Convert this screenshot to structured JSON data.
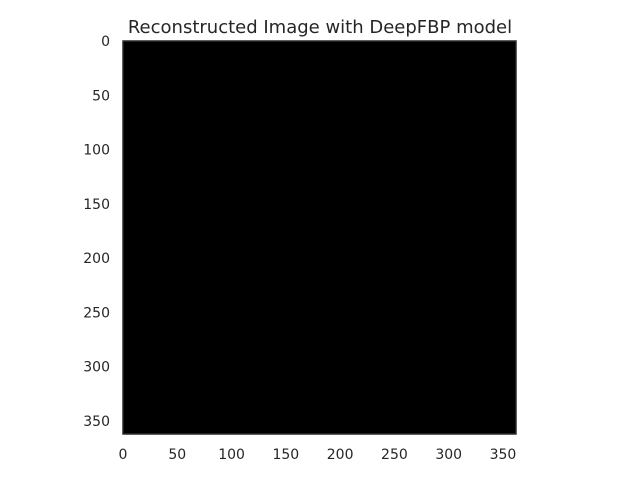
{
  "chart_data": {
    "type": "heatmap",
    "title": "Reconstructed Image with DeepFBP model",
    "xlabel": "",
    "ylabel": "",
    "xlim": [
      0,
      362
    ],
    "ylim": [
      362,
      0
    ],
    "x_ticks": [
      "0",
      "50",
      "100",
      "150",
      "200",
      "250",
      "300",
      "350"
    ],
    "y_ticks": [
      "0",
      "50",
      "100",
      "150",
      "200",
      "250",
      "300",
      "350"
    ],
    "grid": false,
    "image_fill": "#000000",
    "frame_color": "#2a2a2a"
  }
}
